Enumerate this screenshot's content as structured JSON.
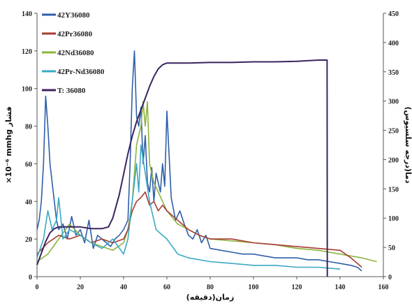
{
  "chart_data": {
    "type": "line",
    "xlabel": "زمان(دقیقه)",
    "ylabel": "×10⁻⁶ mmhg فشار",
    "y2label": "دما(درجه سلسیوس)",
    "xlim": [
      0,
      160
    ],
    "ylim": [
      0,
      140
    ],
    "y2lim": [
      0,
      450
    ],
    "xticks": [
      "0",
      "20",
      "40",
      "60",
      "80",
      "100",
      "120",
      "140",
      "160"
    ],
    "yticks": [
      "0",
      "20",
      "40",
      "60",
      "80",
      "100",
      "120",
      "140"
    ],
    "y2ticks": [
      "0",
      "50",
      "100",
      "150",
      "200",
      "250",
      "300",
      "350",
      "400",
      "450"
    ],
    "grid": false,
    "legend_position": "top-left",
    "series": [
      {
        "name": "42Y36080",
        "color": "#2e5fa8",
        "axis": "left",
        "x": [
          0,
          1,
          2,
          3,
          4,
          5,
          6,
          7,
          8,
          9,
          10,
          12,
          14,
          16,
          18,
          20,
          22,
          24,
          26,
          28,
          30,
          32,
          34,
          36,
          38,
          40,
          42,
          43,
          44,
          45,
          46,
          47,
          48,
          49,
          50,
          51,
          52,
          53,
          54,
          55,
          56,
          57,
          58,
          59,
          60,
          62,
          64,
          66,
          68,
          70,
          72,
          74,
          76,
          78,
          80,
          85,
          90,
          95,
          100,
          105,
          110,
          115,
          120,
          125,
          130,
          135,
          140,
          145,
          148,
          150
        ],
        "y": [
          25,
          30,
          40,
          60,
          96,
          80,
          60,
          50,
          40,
          30,
          25,
          28,
          20,
          32,
          22,
          25,
          18,
          30,
          15,
          22,
          20,
          18,
          16,
          20,
          22,
          25,
          30,
          60,
          100,
          120,
          85,
          80,
          90,
          60,
          75,
          50,
          45,
          58,
          40,
          55,
          50,
          45,
          60,
          48,
          88,
          42,
          30,
          35,
          28,
          22,
          20,
          25,
          18,
          22,
          15,
          14,
          13,
          12,
          12,
          11,
          10,
          10,
          10,
          9,
          9,
          8,
          7,
          6,
          5,
          3
        ]
      },
      {
        "name": "42Pr36080",
        "color": "#a63a32",
        "axis": "left",
        "x": [
          0,
          5,
          10,
          15,
          20,
          25,
          30,
          35,
          40,
          42,
          44,
          46,
          48,
          50,
          52,
          54,
          56,
          58,
          60,
          65,
          70,
          75,
          80,
          90,
          100,
          110,
          120,
          130,
          140,
          145,
          150
        ],
        "y": [
          12,
          18,
          22,
          20,
          22,
          18,
          20,
          18,
          20,
          25,
          35,
          40,
          42,
          45,
          38,
          40,
          35,
          38,
          35,
          30,
          25,
          22,
          20,
          20,
          18,
          17,
          16,
          15,
          14,
          10,
          5
        ]
      },
      {
        "name": "42Nd36080",
        "color": "#8db33a",
        "axis": "left",
        "x": [
          0,
          5,
          10,
          15,
          20,
          25,
          30,
          35,
          40,
          42,
          44,
          46,
          48,
          49,
          50,
          51,
          52,
          54,
          56,
          58,
          60,
          65,
          70,
          75,
          80,
          90,
          100,
          110,
          120,
          130,
          140,
          150,
          157
        ],
        "y": [
          8,
          12,
          20,
          28,
          22,
          18,
          16,
          14,
          18,
          25,
          40,
          70,
          80,
          93,
          80,
          93,
          60,
          50,
          45,
          40,
          35,
          28,
          25,
          22,
          20,
          19,
          18,
          17,
          15,
          14,
          12,
          10,
          8
        ]
      },
      {
        "name": "42Pr-Nd36080",
        "color": "#3aa9c4",
        "axis": "left",
        "x": [
          0,
          3,
          5,
          7,
          9,
          10,
          12,
          15,
          20,
          25,
          30,
          35,
          40,
          42,
          44,
          46,
          47,
          48,
          50,
          52,
          55,
          60,
          65,
          70,
          80,
          90,
          100,
          110,
          120,
          130,
          140
        ],
        "y": [
          10,
          20,
          35,
          25,
          30,
          42,
          20,
          25,
          22,
          18,
          15,
          20,
          12,
          20,
          40,
          60,
          45,
          70,
          55,
          40,
          25,
          20,
          12,
          10,
          8,
          7,
          6,
          6,
          5,
          5,
          4
        ]
      },
      {
        "name": "T: 36080",
        "color": "#3b2460",
        "axis": "right",
        "x": [
          0,
          2,
          4,
          6,
          8,
          10,
          15,
          20,
          25,
          30,
          33,
          35,
          38,
          40,
          42,
          44,
          46,
          48,
          50,
          52,
          54,
          56,
          58,
          60,
          70,
          80,
          90,
          100,
          110,
          120,
          130,
          134,
          134.1
        ],
        "y": [
          20,
          40,
          60,
          75,
          82,
          85,
          85,
          85,
          82,
          82,
          85,
          100,
          140,
          175,
          210,
          240,
          265,
          285,
          305,
          325,
          342,
          355,
          362,
          365,
          365,
          366,
          366,
          367,
          367,
          368,
          370,
          370,
          0
        ]
      }
    ]
  }
}
